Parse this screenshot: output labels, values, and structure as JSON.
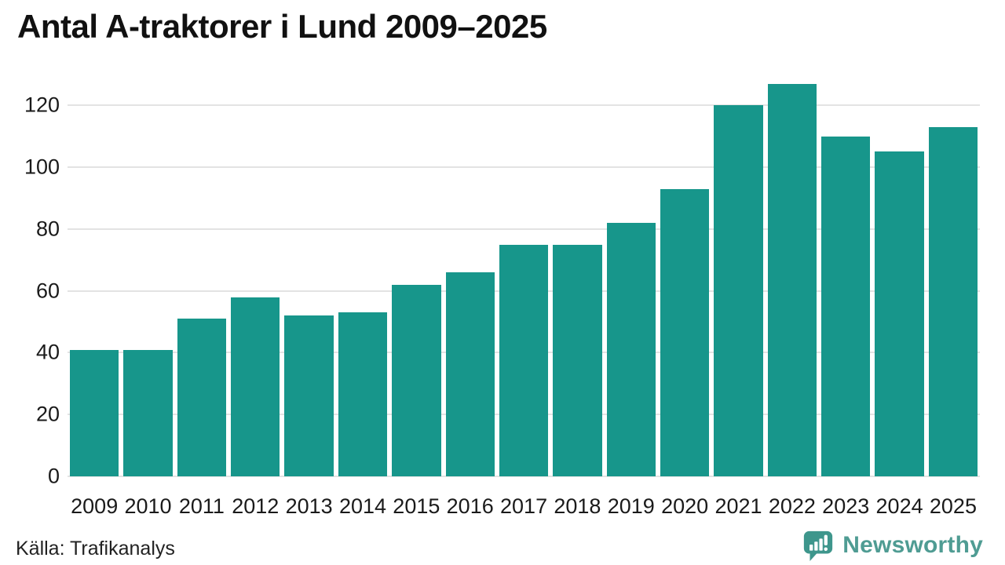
{
  "header": {
    "title": "Antal A-traktorer i Lund 2009–2025"
  },
  "chart_data": {
    "type": "bar",
    "title": "Antal A-traktorer i Lund 2009–2025",
    "categories": [
      "2009",
      "2010",
      "2011",
      "2012",
      "2013",
      "2014",
      "2015",
      "2016",
      "2017",
      "2018",
      "2019",
      "2020",
      "2021",
      "2022",
      "2023",
      "2024",
      "2025"
    ],
    "values": [
      41,
      41,
      51,
      58,
      52,
      53,
      62,
      66,
      75,
      75,
      82,
      93,
      120,
      127,
      110,
      105,
      113
    ],
    "xlabel": "",
    "ylabel": "",
    "ylim": [
      0,
      130
    ],
    "yticks": [
      0,
      20,
      40,
      60,
      80,
      100,
      120
    ],
    "grid": true,
    "legend": false,
    "bar_color": "#17968b",
    "gridline_color": "#e3e3e3"
  },
  "footer": {
    "source": "Källa: Trafikanalys",
    "brand": "Newsworthy",
    "brand_color": "#4f9c93",
    "logo_icon": "newsworthy-pin-barchart-icon"
  }
}
